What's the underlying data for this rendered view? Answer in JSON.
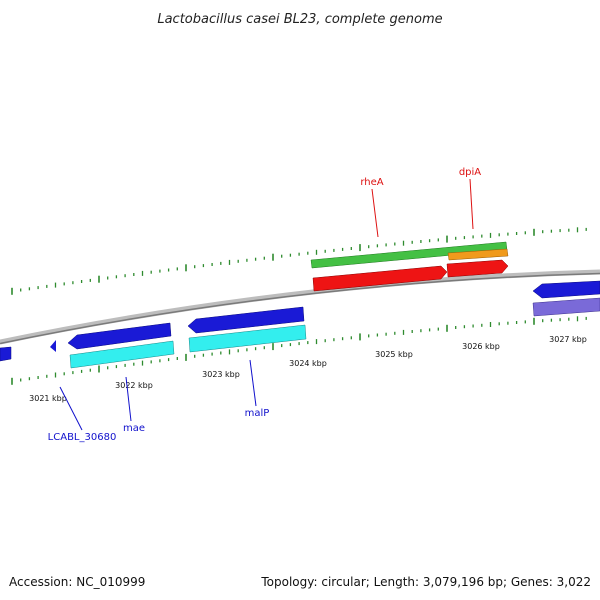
{
  "title": "Lactobacillus casei BL23, complete genome",
  "footer": {
    "accession": "Accession: NC_010999",
    "summary": "Topology: circular; Length: 3,079,196 bp; Genes: 3,022"
  },
  "colors": {
    "backbone": "#8a8a8a",
    "tick": "#2e8b2e",
    "gene_label_top": "#dd1111",
    "gene_label_bottom": "#1111cc",
    "blue_gene": "#1a1ad6",
    "cyan_gene": "#33eeee",
    "green_gene": "#44c044",
    "orange_gene": "#f09a1c",
    "red_gene": "#ee1414",
    "purple_gene": "#7a6ad8"
  },
  "scale": {
    "labels": [
      "3021 kbp",
      "3022 kbp",
      "3023 kbp",
      "3024 kbp",
      "3025 kbp",
      "3026 kbp",
      "3027 kbp"
    ]
  },
  "genes": {
    "top": [
      "rheA",
      "dpiA"
    ],
    "bottom": [
      "LCABL_30680",
      "mae",
      "malP"
    ]
  }
}
